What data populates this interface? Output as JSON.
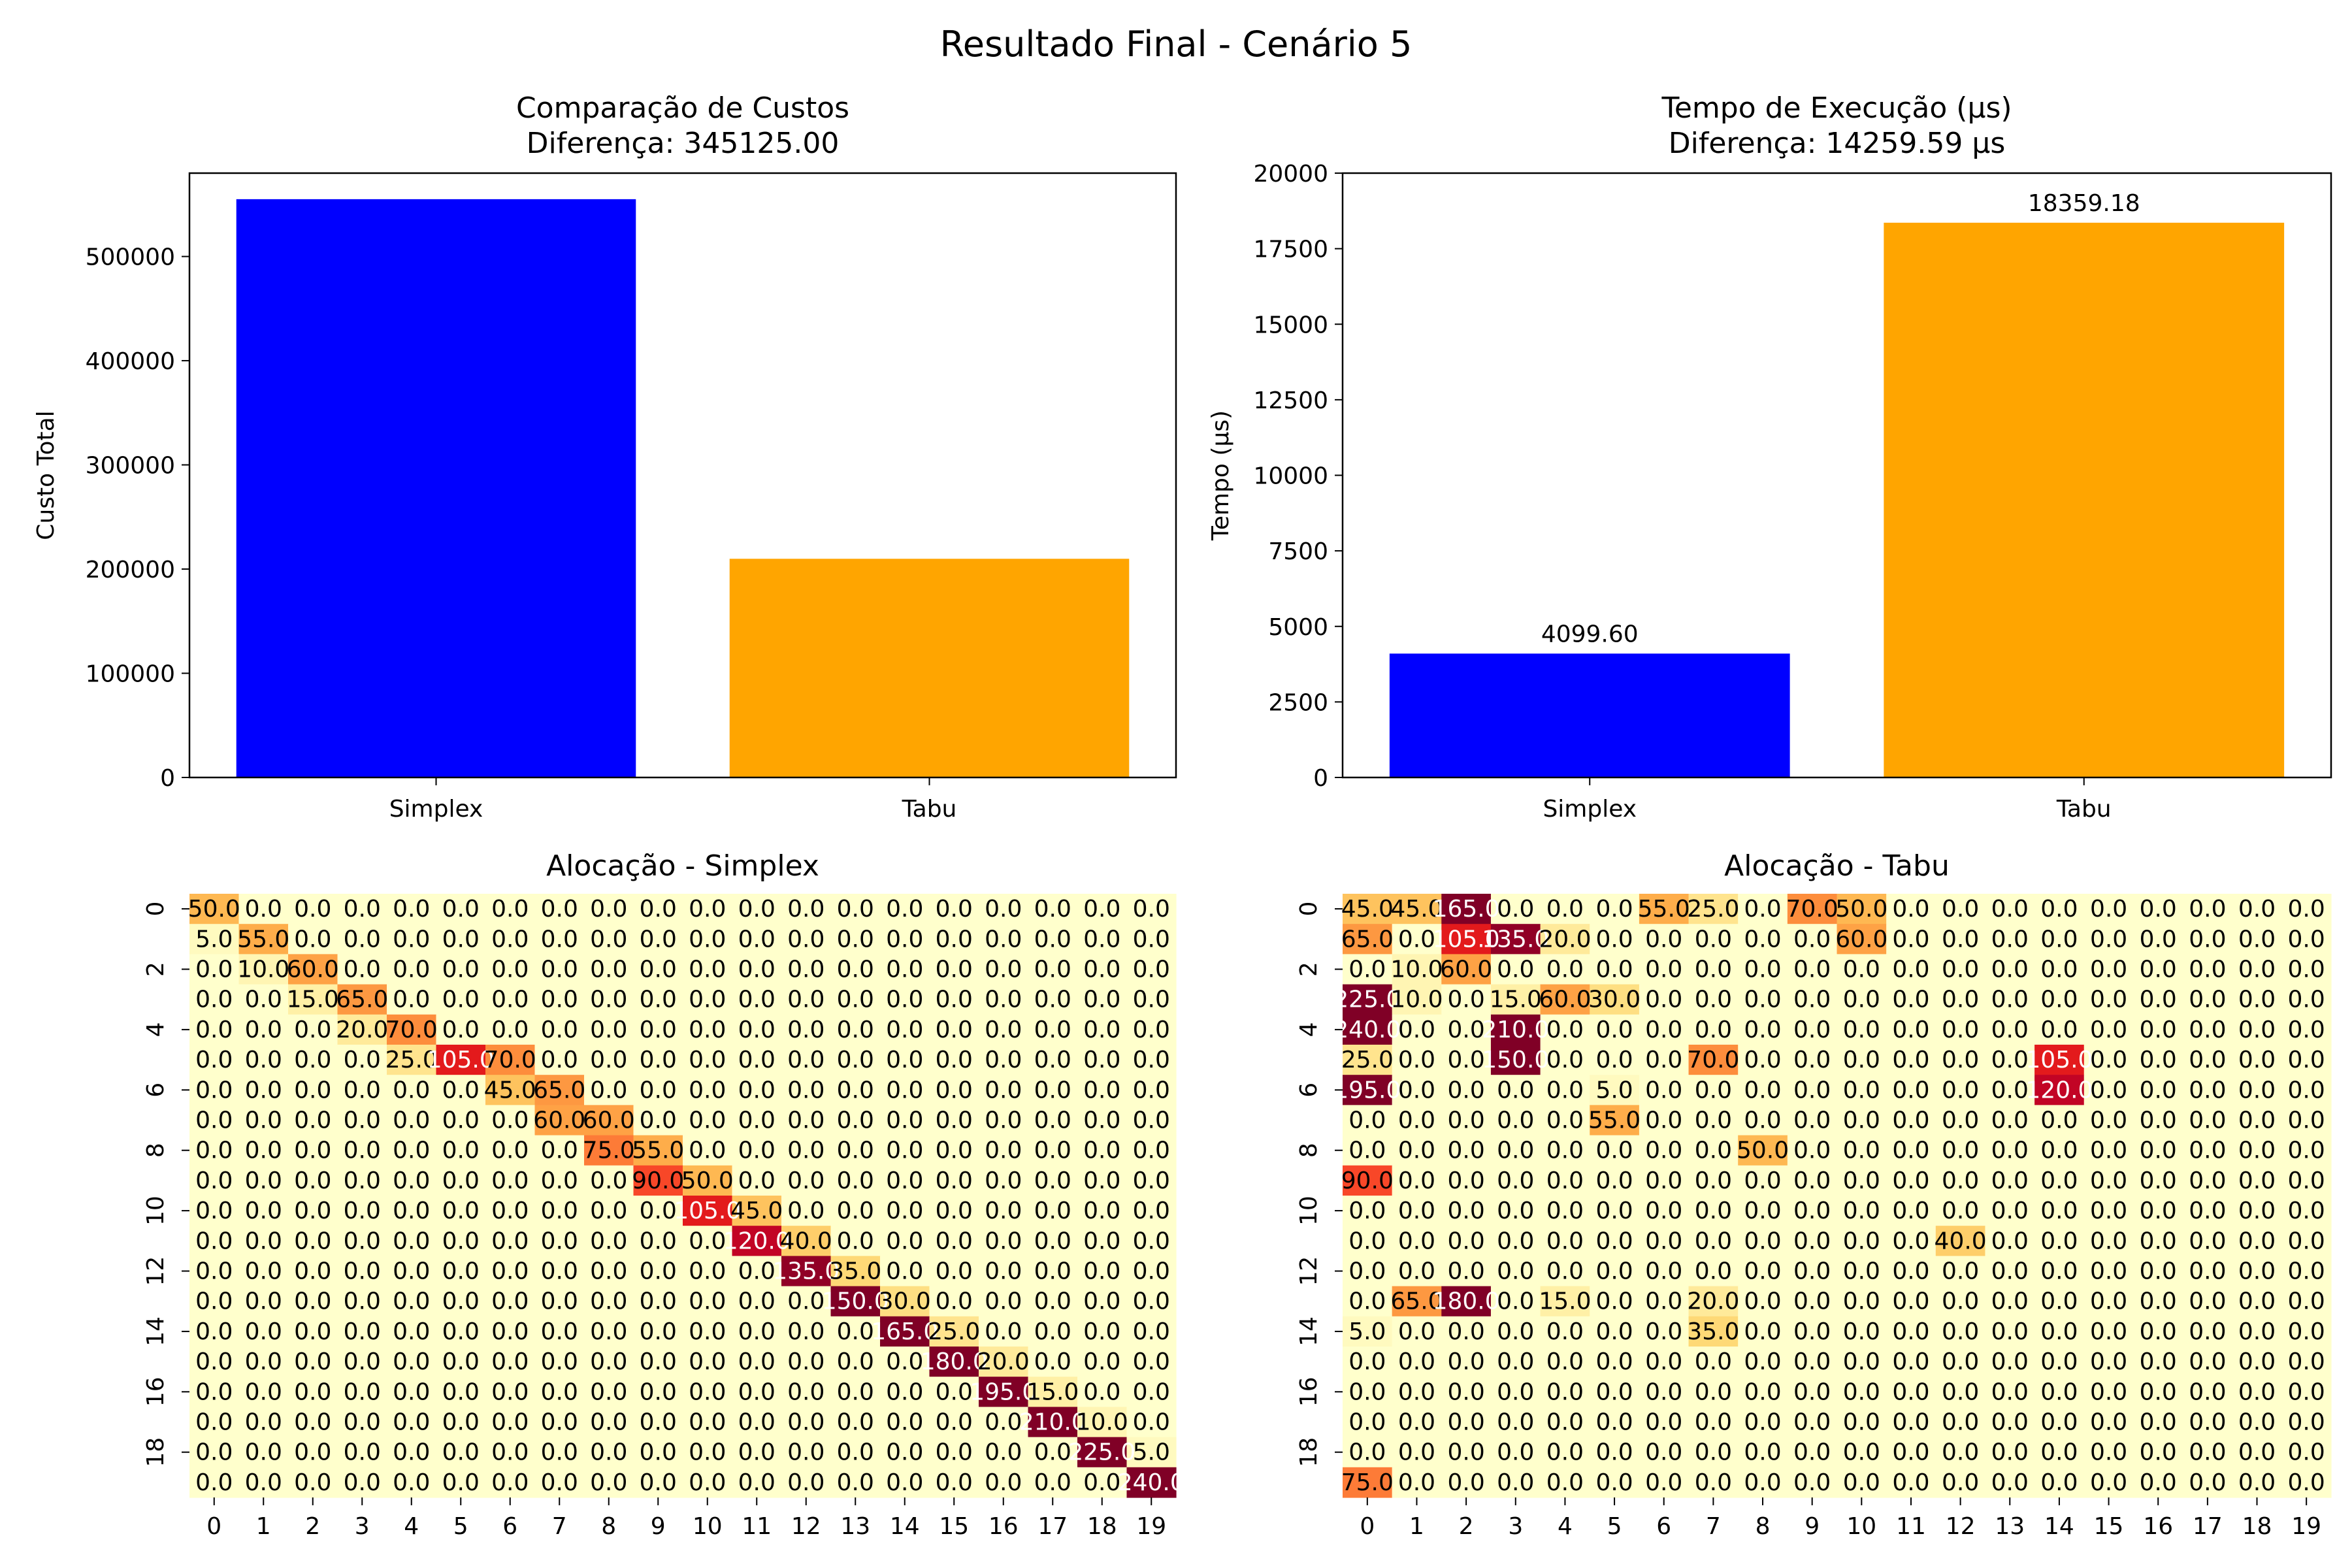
{
  "suptitle": "Resultado Final - Cenário 5",
  "colors": {
    "simplex": "#0000ff",
    "tabu": "#ffa500"
  },
  "chart_data": [
    {
      "type": "bar",
      "title": [
        "Comparação de Custos",
        "Diferença: 345125.00"
      ],
      "categories": [
        "Simplex",
        "Tabu"
      ],
      "values": [
        555000,
        209875
      ],
      "ylabel": "Custo Total",
      "xlabel": "",
      "ylim": [
        0,
        580000
      ],
      "yticks": [
        0,
        100000,
        200000,
        300000,
        400000,
        500000
      ],
      "bar_labels": [],
      "grid": false
    },
    {
      "type": "bar",
      "title": [
        "Tempo de Execução (μs)",
        "Diferença: 14259.59 μs"
      ],
      "categories": [
        "Simplex",
        "Tabu"
      ],
      "values": [
        4099.6,
        18359.18
      ],
      "ylabel": "Tempo (μs)",
      "xlabel": "",
      "ylim": [
        0,
        20000
      ],
      "yticks": [
        0,
        2500,
        5000,
        7500,
        10000,
        12500,
        15000,
        17500,
        20000
      ],
      "bar_labels": [
        "4099.60",
        "18359.18"
      ],
      "grid": false
    },
    {
      "type": "heatmap",
      "title": "Alocação - Simplex",
      "colormap": "YlOrRd",
      "vmin": 0,
      "vmax": 140,
      "x_ticks": [
        0,
        1,
        2,
        3,
        4,
        5,
        6,
        7,
        8,
        9,
        10,
        11,
        12,
        13,
        14,
        15,
        16,
        17,
        18,
        19
      ],
      "y_ticks": [
        0,
        2,
        4,
        6,
        8,
        10,
        12,
        14,
        16,
        18
      ],
      "nonzero": [
        [
          0,
          0,
          50
        ],
        [
          1,
          0,
          5
        ],
        [
          1,
          1,
          55
        ],
        [
          2,
          1,
          10
        ],
        [
          2,
          2,
          60
        ],
        [
          3,
          2,
          15
        ],
        [
          3,
          3,
          65
        ],
        [
          4,
          3,
          20
        ],
        [
          4,
          4,
          70
        ],
        [
          5,
          4,
          25
        ],
        [
          5,
          5,
          105
        ],
        [
          5,
          6,
          70
        ],
        [
          6,
          6,
          45
        ],
        [
          6,
          7,
          65
        ],
        [
          7,
          7,
          60
        ],
        [
          7,
          8,
          60
        ],
        [
          8,
          8,
          75
        ],
        [
          8,
          9,
          55
        ],
        [
          9,
          9,
          90
        ],
        [
          9,
          10,
          50
        ],
        [
          10,
          10,
          105
        ],
        [
          10,
          11,
          45
        ],
        [
          11,
          11,
          120
        ],
        [
          11,
          12,
          40
        ],
        [
          12,
          12,
          135
        ],
        [
          12,
          13,
          35
        ],
        [
          13,
          13,
          150
        ],
        [
          13,
          14,
          30
        ],
        [
          14,
          14,
          165
        ],
        [
          14,
          15,
          25
        ],
        [
          15,
          15,
          180
        ],
        [
          15,
          16,
          20
        ],
        [
          16,
          16,
          195
        ],
        [
          16,
          17,
          15
        ],
        [
          17,
          17,
          210
        ],
        [
          17,
          18,
          10
        ],
        [
          18,
          18,
          225
        ],
        [
          18,
          19,
          5
        ],
        [
          19,
          19,
          240
        ]
      ]
    },
    {
      "type": "heatmap",
      "title": "Alocação - Tabu",
      "colormap": "YlOrRd",
      "vmin": 0,
      "vmax": 140,
      "x_ticks": [
        0,
        1,
        2,
        3,
        4,
        5,
        6,
        7,
        8,
        9,
        10,
        11,
        12,
        13,
        14,
        15,
        16,
        17,
        18,
        19
      ],
      "y_ticks": [
        0,
        2,
        4,
        6,
        8,
        10,
        12,
        14,
        16,
        18
      ],
      "nonzero": [
        [
          0,
          0,
          45
        ],
        [
          0,
          1,
          45
        ],
        [
          0,
          2,
          165
        ],
        [
          0,
          6,
          55
        ],
        [
          0,
          7,
          25
        ],
        [
          0,
          9,
          70
        ],
        [
          0,
          10,
          50
        ],
        [
          1,
          0,
          65
        ],
        [
          1,
          2,
          105
        ],
        [
          1,
          3,
          135
        ],
        [
          1,
          4,
          20
        ],
        [
          1,
          10,
          60
        ],
        [
          2,
          1,
          10
        ],
        [
          2,
          2,
          60
        ],
        [
          3,
          0,
          225
        ],
        [
          3,
          1,
          10
        ],
        [
          3,
          3,
          15
        ],
        [
          3,
          4,
          60
        ],
        [
          3,
          5,
          30
        ],
        [
          4,
          0,
          240
        ],
        [
          4,
          3,
          210
        ],
        [
          5,
          0,
          25
        ],
        [
          5,
          3,
          150
        ],
        [
          5,
          7,
          70
        ],
        [
          5,
          14,
          105
        ],
        [
          6,
          0,
          195
        ],
        [
          6,
          5,
          5
        ],
        [
          6,
          14,
          120
        ],
        [
          7,
          5,
          55
        ],
        [
          8,
          8,
          50
        ],
        [
          9,
          0,
          90
        ],
        [
          11,
          12,
          40
        ],
        [
          13,
          1,
          65
        ],
        [
          13,
          2,
          180
        ],
        [
          13,
          4,
          15
        ],
        [
          13,
          7,
          20
        ],
        [
          14,
          0,
          5
        ],
        [
          14,
          7,
          35
        ],
        [
          19,
          0,
          75
        ]
      ]
    }
  ]
}
